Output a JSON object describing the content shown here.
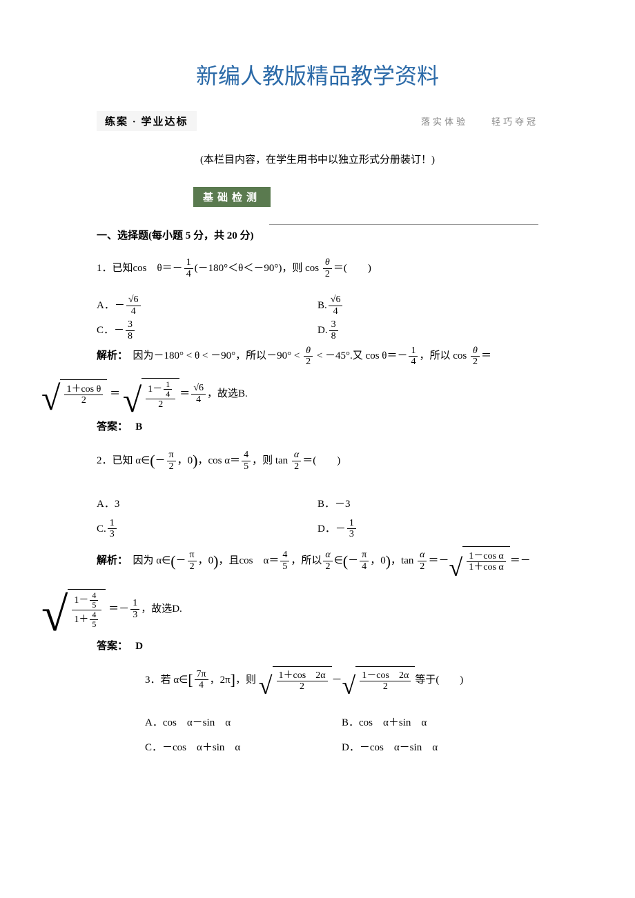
{
  "title": {
    "text": "新编人教版精品教学资料",
    "color": "#2b6aa8"
  },
  "header_box": "练案 · 学业达标",
  "header_sub": "落实体验　　轻巧夺冠",
  "note": "(本栏目内容，在学生用书中以独立形式分册装订！)",
  "badge": {
    "text": "基础检测",
    "bg": "#5a7a4f"
  },
  "section_heading": "一、选择题(每小题 5 分，共 20 分)",
  "labels": {
    "explain": "解析：",
    "answer": "答案：",
    "choose_suffix": "故选"
  },
  "q1": {
    "prefix": "1．已知cos　θ＝－",
    "frac1_num": "1",
    "frac1_den": "4",
    "cond": "(－180°＜θ＜－90°)，则 cos",
    "frac2_num": "θ",
    "frac2_den": "2",
    "tail": "＝(　　)",
    "optA_prefix": "A．－",
    "optA_num": "√6",
    "optA_den": "4",
    "optB_prefix": "B.",
    "optB_num": "√6",
    "optB_den": "4",
    "optC_prefix": "C．－",
    "optC_num": "3",
    "optC_den": "8",
    "optD_prefix": "D.",
    "optD_num": "3",
    "optD_den": "8",
    "explain1": "因为－180° < θ < －90°，所以－90° <",
    "explain_fr_num": "θ",
    "explain_fr_den": "2",
    "explain2": "< －45°.又 cos θ＝－",
    "explain3": "，所以 cos",
    "explain4": "＝",
    "sqrt1_num": "1＋cos θ",
    "sqrt1_den": "2",
    "sqrt2_inner_num": "1",
    "sqrt2_inner_den": "4",
    "sqrt2_den": "2",
    "result_num": "√6",
    "result_den": "4",
    "conclusion": " B.",
    "answer": "B"
  },
  "q2": {
    "prefix": "2．已知 α∈",
    "interval_a": "－",
    "interval_num": "π",
    "interval_den": "2",
    "interval_b": "，0",
    "mid": "，cos α＝",
    "cos_num": "4",
    "cos_den": "5",
    "then": "，则 tan",
    "half_num": "α",
    "half_den": "2",
    "tail": "＝(　　)",
    "optA": "A．3",
    "optB": "B．－3",
    "optC_prefix": "C.",
    "optC_num": "1",
    "optC_den": "3",
    "optD_prefix": "D．－",
    "optD_num": "1",
    "optD_den": "3",
    "explain1": "因为 α∈",
    "explain2": "，且cos　α＝",
    "explain3": "，所以",
    "half2_den": "2",
    "explain4": "∈",
    "int2_num": "π",
    "int2_den": "4",
    "explain5": "，tan",
    "explain6": "＝－",
    "root_num": "1－cos α",
    "root_den": "1＋cos α",
    "explain7": "＝－",
    "big_num_top_num": "4",
    "big_num_top_den": "5",
    "eq_num": "1",
    "eq_den": "3",
    "conclusion": " D.",
    "answer": "D"
  },
  "q3": {
    "prefix": "3．若 α∈",
    "int_num": "7π",
    "int_den": "4",
    "int_right": "，2π",
    "then": "，则",
    "r1_num": "1＋cos　2α",
    "r1_den": "2",
    "minus": "－",
    "r2_num": "1－cos　2α",
    "r2_den": "2",
    "tail": "等于(　　)",
    "optA": "A．cos　α－sin　α",
    "optB": "B．cos　α＋sin　α",
    "optC": "C．－cos　α＋sin　α",
    "optD": "D．－cos　α－sin　α"
  }
}
